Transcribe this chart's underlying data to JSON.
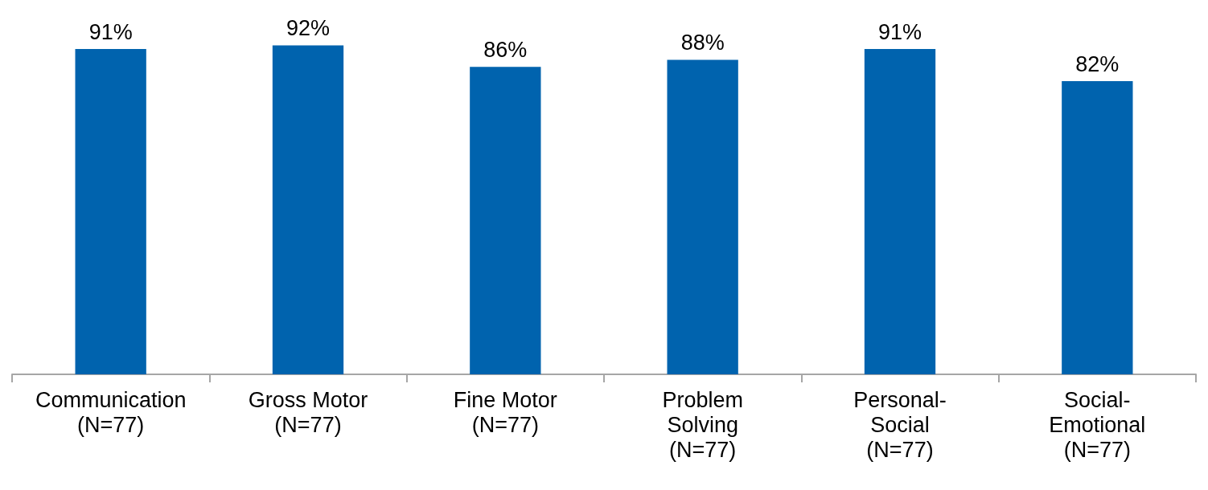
{
  "chart_data": {
    "type": "bar",
    "categories": [
      "Communication\n(N=77)",
      "Gross Motor\n(N=77)",
      "Fine Motor\n(N=77)",
      "Problem\nSolving\n(N=77)",
      "Personal-\nSocial\n(N=77)",
      "Social-\nEmotional\n(N=77)"
    ],
    "values": [
      91,
      92,
      86,
      88,
      91,
      82
    ],
    "value_labels": [
      "91%",
      "92%",
      "86%",
      "88%",
      "91%",
      "82%"
    ],
    "color": "#0063ae"
  }
}
